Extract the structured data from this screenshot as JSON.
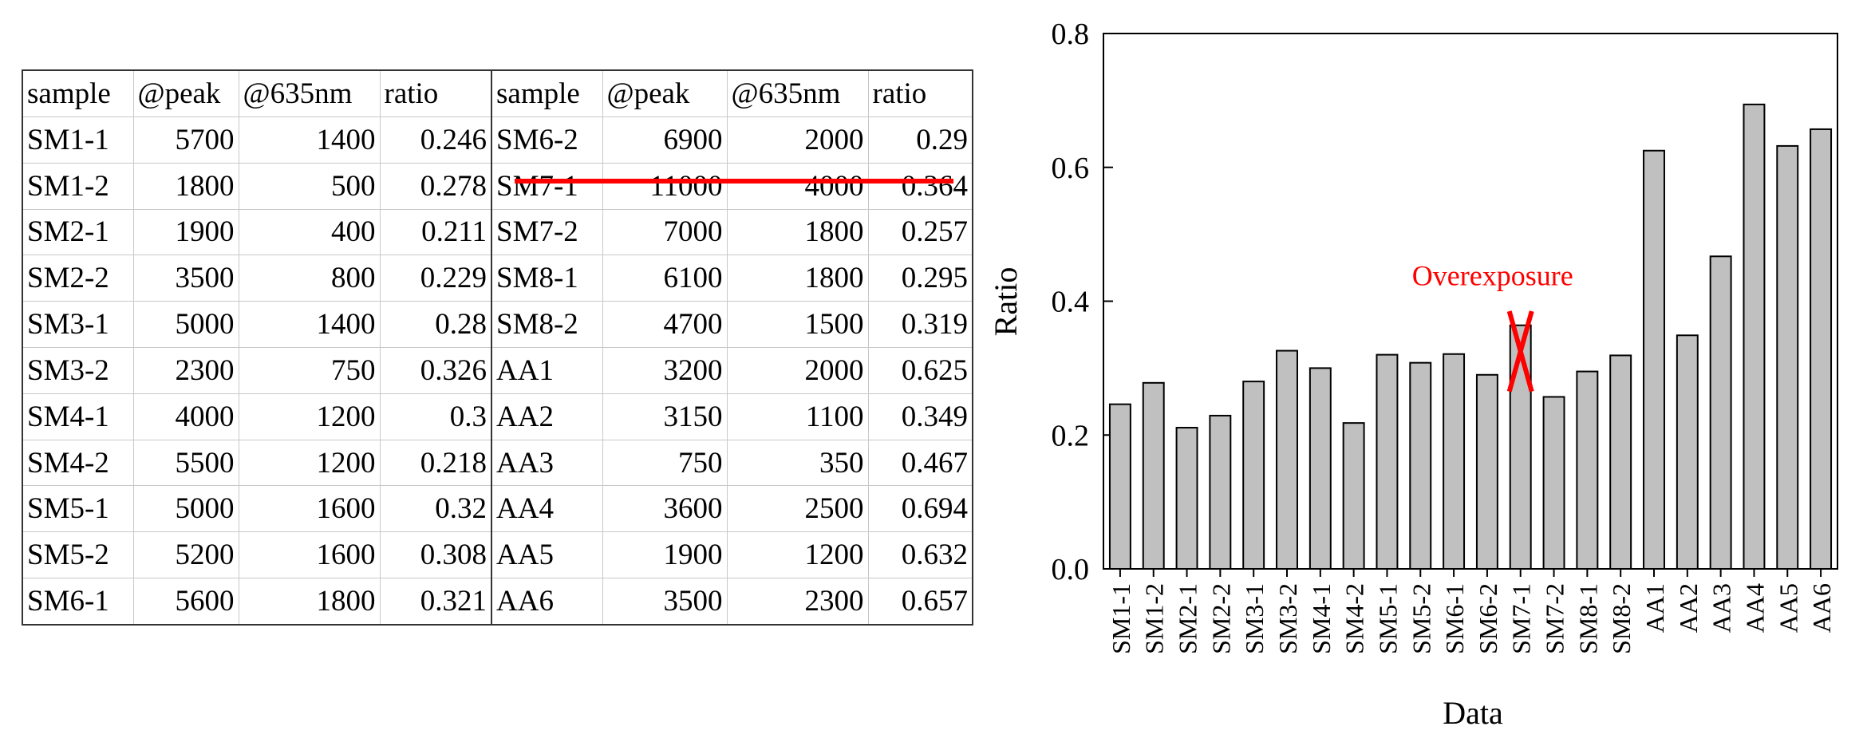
{
  "table": {
    "headers": [
      "sample",
      "@peak",
      "@635nm",
      "ratio",
      "sample",
      "@peak",
      "@635nm",
      "ratio"
    ],
    "rows": [
      [
        "SM1-1",
        "5700",
        "1400",
        "0.246",
        "SM6-2",
        "6900",
        "2000",
        "0.29"
      ],
      [
        "SM1-2",
        "1800",
        "500",
        "0.278",
        "SM7-1",
        "11000",
        "4000",
        "0.364"
      ],
      [
        "SM2-1",
        "1900",
        "400",
        "0.211",
        "SM7-2",
        "7000",
        "1800",
        "0.257"
      ],
      [
        "SM2-2",
        "3500",
        "800",
        "0.229",
        "SM8-1",
        "6100",
        "1800",
        "0.295"
      ],
      [
        "SM3-1",
        "5000",
        "1400",
        "0.28",
        "SM8-2",
        "4700",
        "1500",
        "0.319"
      ],
      [
        "SM3-2",
        "2300",
        "750",
        "0.326",
        "AA1",
        "3200",
        "2000",
        "0.625"
      ],
      [
        "SM4-1",
        "4000",
        "1200",
        "0.3",
        "AA2",
        "3150",
        "1100",
        "0.349"
      ],
      [
        "SM4-2",
        "5500",
        "1200",
        "0.218",
        "AA3",
        "750",
        "350",
        "0.467"
      ],
      [
        "SM5-1",
        "5000",
        "1600",
        "0.32",
        "AA4",
        "3600",
        "2500",
        "0.694"
      ],
      [
        "SM5-2",
        "5200",
        "1600",
        "0.308",
        "AA5",
        "1900",
        "1200",
        "0.632"
      ],
      [
        "SM6-1",
        "5600",
        "1800",
        "0.321",
        "AA6",
        "3500",
        "2300",
        "0.657"
      ]
    ],
    "struck_row_label": "SM7-1",
    "strike_color": "#ff0000"
  },
  "chart_data": {
    "type": "bar",
    "categories": [
      "SM1-1",
      "SM1-2",
      "SM2-1",
      "SM2-2",
      "SM3-1",
      "SM3-2",
      "SM4-1",
      "SM4-2",
      "SM5-1",
      "SM5-2",
      "SM6-1",
      "SM6-2",
      "SM7-1",
      "SM7-2",
      "SM8-1",
      "SM8-2",
      "AA1",
      "AA2",
      "AA3",
      "AA4",
      "AA5",
      "AA6"
    ],
    "values": [
      0.246,
      0.278,
      0.211,
      0.229,
      0.28,
      0.326,
      0.3,
      0.218,
      0.32,
      0.308,
      0.321,
      0.29,
      0.364,
      0.257,
      0.295,
      0.319,
      0.625,
      0.349,
      0.467,
      0.694,
      0.632,
      0.657
    ],
    "xlabel": "Data",
    "ylabel": "Ratio",
    "ylim": [
      0,
      0.8
    ],
    "yticks": [
      "0.0",
      "0.2",
      "0.4",
      "0.6",
      "0.8"
    ],
    "bar_color": "#c0c0c0",
    "annotation": {
      "text": "Overexposure",
      "category": "SM7-1",
      "mark": "cross",
      "color": "#ff0000"
    }
  }
}
